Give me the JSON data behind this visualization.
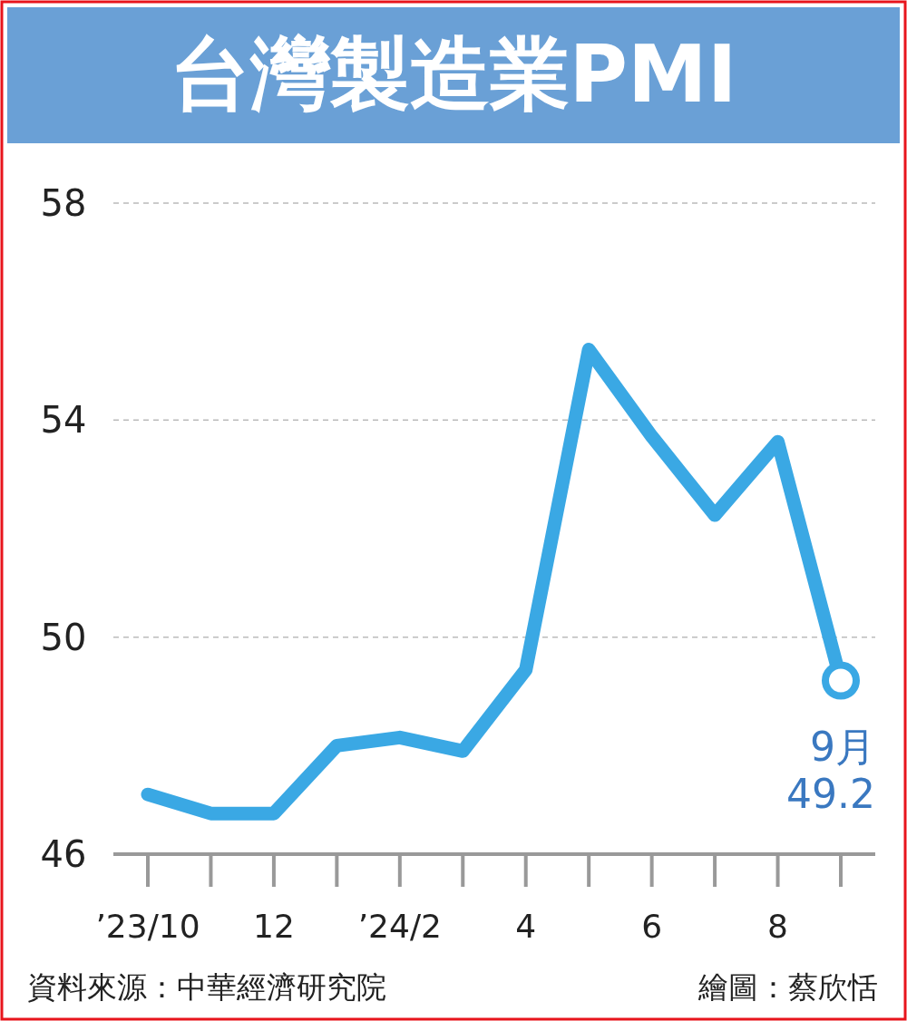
{
  "chart_data": {
    "type": "line",
    "title": "台灣製造業PMI",
    "categories": [
      "’23/10",
      null,
      "12",
      null,
      "’24/2",
      null,
      "4",
      null,
      "6",
      null,
      "8",
      null
    ],
    "series": [
      {
        "type": "line",
        "color": "#3aa8e4",
        "values": [
          47.1,
          46.75,
          46.75,
          48.0,
          48.15,
          47.9,
          49.4,
          55.3,
          53.7,
          52.25,
          53.6,
          49.2
        ]
      },
      {
        "type": "scatter",
        "color": "#3aa8e4",
        "marker": "circle",
        "values": [
          null,
          null,
          null,
          null,
          null,
          null,
          null,
          null,
          null,
          null,
          null,
          49.2
        ]
      }
    ],
    "ylim": [
      46,
      58
    ],
    "yticks": [
      46,
      50,
      54,
      58
    ],
    "grid": "y",
    "annotations": [
      {
        "text": "9月\n49.2",
        "y": 49.2
      },
      "資料來源：中華經濟研究院",
      "繪圖：蔡欣恬"
    ]
  }
}
